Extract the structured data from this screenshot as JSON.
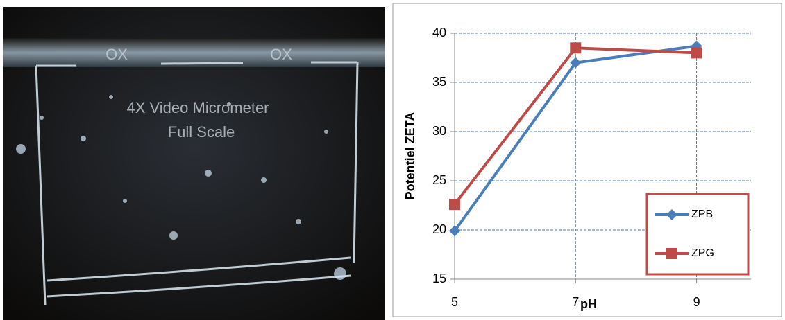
{
  "image_text": [
    "OX",
    "OX",
    "4X Video Micrometer",
    "Full Scale"
  ],
  "chart_data": {
    "type": "line",
    "x_label": "pH",
    "y_label": "Potentiel ZETA",
    "x": [
      5,
      7,
      9
    ],
    "series": [
      {
        "name": "ZPB",
        "color": "#4a7ebb",
        "marker": "diamond",
        "values": [
          19.9,
          37,
          38.7
        ]
      },
      {
        "name": "ZPG",
        "color": "#be4b48",
        "marker": "square",
        "values": [
          22.6,
          38.5,
          38
        ]
      }
    ],
    "xlim": [
      5,
      9.9
    ],
    "xticks": [
      5,
      7,
      9
    ],
    "ylim": [
      15,
      40
    ],
    "yticks": [
      15,
      20,
      25,
      30,
      35,
      40
    ],
    "grid": true,
    "legend": "lower right"
  }
}
